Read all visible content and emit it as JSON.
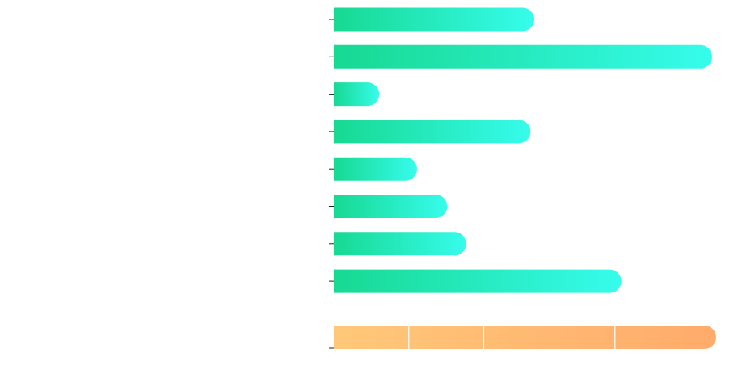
{
  "chart_data": {
    "type": "bar",
    "orientation": "horizontal",
    "title": "",
    "xlabel": "",
    "ylabel": "",
    "grid": false,
    "legend": "none",
    "xlim": [
      0,
      100
    ],
    "series": [
      {
        "values": [
          53,
          100,
          12,
          52,
          22,
          30,
          35,
          76
        ]
      }
    ],
    "stacked_bar": {
      "segments": [
        20,
        20,
        35,
        27
      ]
    },
    "colors": {
      "bar_start": "#17d992",
      "bar_end": "#36fcec",
      "stack_start": "#ffc879",
      "stack_end": "#ffab6b",
      "tick": "#222222",
      "divider": "#ffffff"
    }
  }
}
